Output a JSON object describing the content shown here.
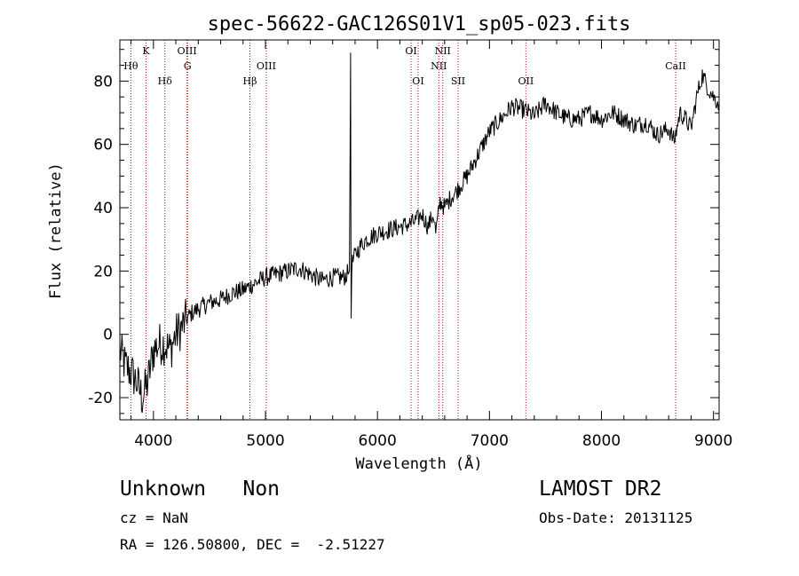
{
  "chart_data": {
    "type": "line",
    "title": "spec-56622-GAC126S01V1_sp05-023.fits",
    "xlabel": "Wavelength (Å)",
    "ylabel": "Flux (relative)",
    "xlim": [
      3700,
      9050
    ],
    "ylim": [
      -27,
      93
    ],
    "xticks": [
      4000,
      5000,
      6000,
      7000,
      8000,
      9000
    ],
    "yticks": [
      -20,
      0,
      20,
      40,
      60,
      80
    ],
    "grid": false,
    "series": [
      {
        "color": "#000000",
        "x": [
          3700,
          3750,
          3800,
          3850,
          3900,
          3950,
          4000,
          4050,
          4100,
          4150,
          4200,
          4250,
          4300,
          4350,
          4400,
          4500,
          4600,
          4700,
          4800,
          4900,
          5000,
          5100,
          5200,
          5300,
          5400,
          5500,
          5600,
          5700,
          5750,
          5760,
          5765,
          5770,
          5800,
          5850,
          5900,
          6000,
          6100,
          6200,
          6300,
          6350,
          6400,
          6450,
          6500,
          6520,
          6560,
          6600,
          6650,
          6700,
          6800,
          6900,
          7000,
          7100,
          7150,
          7200,
          7300,
          7400,
          7500,
          7600,
          7700,
          7800,
          7900,
          8000,
          8100,
          8200,
          8300,
          8400,
          8500,
          8600,
          8650,
          8700,
          8750,
          8800,
          8850,
          8900,
          8950,
          9000,
          9050
        ],
        "y": [
          -5,
          -10,
          -12,
          -15,
          -20,
          -15,
          -5,
          -3,
          -3,
          -5,
          0,
          2,
          5,
          7,
          8,
          10,
          11,
          13,
          14,
          16,
          18,
          19,
          20,
          21,
          19,
          17,
          18,
          18,
          20,
          89,
          5,
          22,
          25,
          28,
          30,
          32,
          33,
          34,
          35,
          36,
          38,
          34,
          38,
          32,
          42,
          40,
          43,
          45,
          50,
          57,
          64,
          68,
          70,
          72,
          71,
          69,
          73,
          70,
          68,
          68,
          70,
          68,
          70,
          68,
          66,
          67,
          63,
          65,
          61,
          70,
          68,
          65,
          75,
          82,
          78,
          75,
          73
        ]
      }
    ],
    "lines": [
      {
        "name": "Hθ",
        "wavelength": 3798,
        "row": 2
      },
      {
        "name": "K",
        "wavelength": 3934,
        "row": 1
      },
      {
        "name": "Hδ",
        "wavelength": 4102,
        "row": 3
      },
      {
        "name": "OIII",
        "wavelength": 4300,
        "row": 1
      },
      {
        "name": "G",
        "wavelength": 4305,
        "row": 2
      },
      {
        "name": "Hβ",
        "wavelength": 4861,
        "row": 3
      },
      {
        "name": "OIII",
        "wavelength": 5007,
        "row": 2
      },
      {
        "name": "OI",
        "wavelength": 6300,
        "row": 1
      },
      {
        "name": "OI",
        "wavelength": 6363,
        "row": 3
      },
      {
        "name": "NII",
        "wavelength": 6548,
        "row": 2
      },
      {
        "name": "NII",
        "wavelength": 6583,
        "row": 1
      },
      {
        "name": "SII",
        "wavelength": 6720,
        "row": 3
      },
      {
        "name": "OII",
        "wavelength": 7325,
        "row": 3
      },
      {
        "name": "CaII",
        "wavelength": 8662,
        "row": 2
      }
    ]
  },
  "footer": {
    "class_text": "Unknown   Non",
    "survey": "LAMOST DR2",
    "cz": "cz = NaN",
    "obs_date": "Obs-Date: 20131125",
    "coords": "RA = 126.50800, DEC =  -2.51227"
  }
}
